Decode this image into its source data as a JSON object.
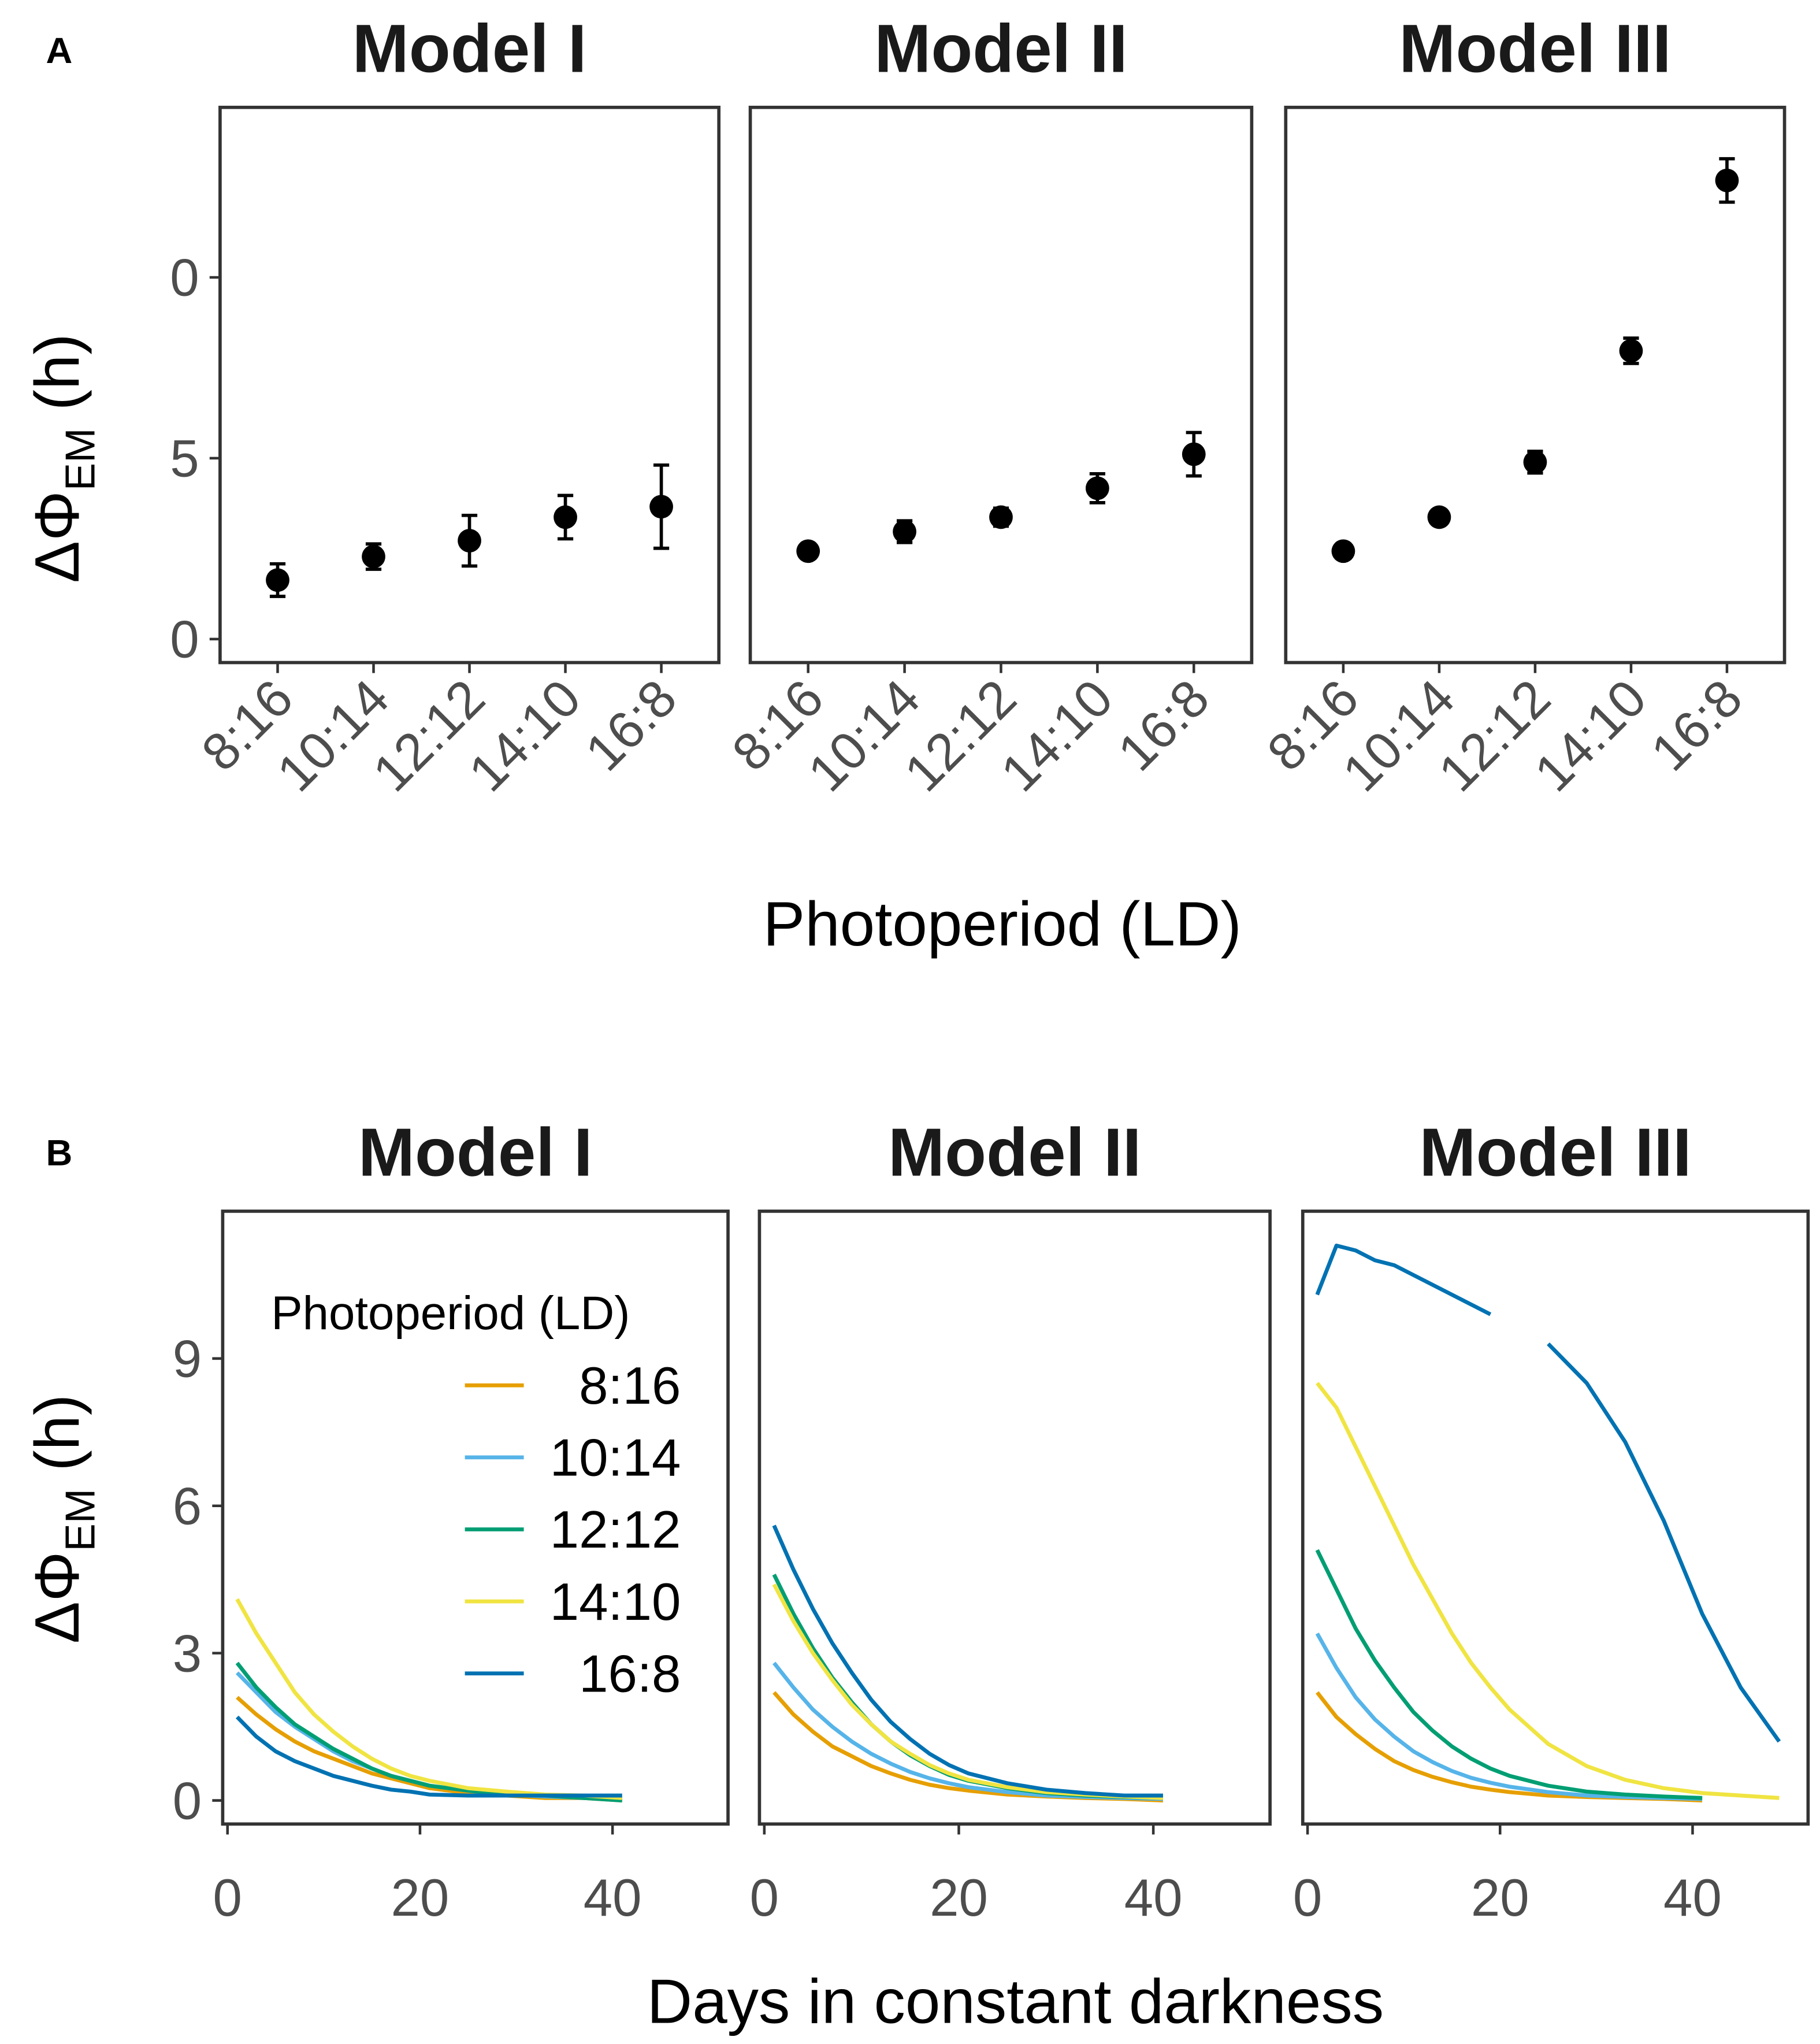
{
  "panels": [
    {
      "label": "A",
      "xlabel": "Photoperiod (LD)",
      "ylabel": {
        "main": "ΔΦ",
        "sub": "EM",
        "unit": " (h)"
      }
    },
    {
      "label": "B",
      "xlabel": "Days in constant darkness",
      "ylabel": {
        "main": "ΔΦ",
        "sub": "EM",
        "unit": " (h)"
      }
    }
  ],
  "chart_data": [
    {
      "type": "errorbar",
      "title": "Model I",
      "categories": [
        "8:16",
        "10:14",
        "12:12",
        "14:10",
        "16:8"
      ],
      "values": [
        1.63,
        2.28,
        2.72,
        3.37,
        3.66
      ],
      "errors": [
        0.45,
        0.35,
        0.7,
        0.6,
        1.15
      ],
      "color": "#000000",
      "ylim": [
        -0.65,
        14.7
      ],
      "yticks": [
        0,
        5,
        {
          "value": 10,
          "label": "0"
        }
      ]
    },
    {
      "type": "errorbar",
      "title": "Model II",
      "categories": [
        "8:16",
        "10:14",
        "12:12",
        "14:10",
        "16:8"
      ],
      "values": [
        2.43,
        2.97,
        3.37,
        4.17,
        5.11
      ],
      "errors": [
        0.2,
        0.3,
        0.25,
        0.4,
        0.6
      ],
      "color": "#000000",
      "ylim": [
        -0.65,
        14.7
      ]
    },
    {
      "type": "errorbar",
      "title": "Model III",
      "categories": [
        "8:16",
        "10:14",
        "12:12",
        "14:10",
        "16:8"
      ],
      "values": [
        2.43,
        3.37,
        4.89,
        7.97,
        12.68
      ],
      "errors": [
        0.2,
        0.2,
        0.3,
        0.35,
        0.6
      ],
      "color": "#000000",
      "ylim": [
        -0.65,
        14.7
      ]
    },
    {
      "type": "line",
      "title": "Model I",
      "legend_title": "Photoperiod (LD)",
      "xlim": [
        -0.5,
        52
      ],
      "xticks": [
        0,
        20,
        40
      ],
      "ylim": [
        -0.48,
        12
      ],
      "yticks": [
        0,
        3,
        6,
        9
      ],
      "x": [
        1,
        3,
        5,
        7,
        9,
        11,
        13,
        15,
        17,
        19,
        21,
        25,
        29,
        33,
        37,
        41
      ],
      "series": [
        {
          "name": "8:16",
          "color": "#e69f00",
          "values": [
            2.1,
            1.75,
            1.45,
            1.2,
            1.0,
            0.85,
            0.7,
            0.55,
            0.45,
            0.35,
            0.25,
            0.15,
            0.1,
            0.05,
            0.05,
            0.0
          ]
        },
        {
          "name": "10:14",
          "color": "#56b4e9",
          "values": [
            2.6,
            2.2,
            1.8,
            1.5,
            1.25,
            1.0,
            0.8,
            0.65,
            0.5,
            0.4,
            0.3,
            0.2,
            0.12,
            0.08,
            0.05,
            0.03
          ]
        },
        {
          "name": "12:12",
          "color": "#009e73",
          "values": [
            2.8,
            2.3,
            1.9,
            1.55,
            1.3,
            1.05,
            0.85,
            0.65,
            0.5,
            0.4,
            0.3,
            0.2,
            0.12,
            0.1,
            0.05,
            0.0
          ]
        },
        {
          "name": "14:10",
          "color": "#f0e442",
          "values": [
            4.1,
            3.4,
            2.8,
            2.2,
            1.75,
            1.4,
            1.1,
            0.85,
            0.65,
            0.5,
            0.4,
            0.25,
            0.18,
            0.12,
            0.1,
            0.05
          ]
        },
        {
          "name": "16:8",
          "color": "#0072b2",
          "values": [
            1.7,
            1.3,
            1.0,
            0.8,
            0.65,
            0.5,
            0.4,
            0.3,
            0.22,
            0.18,
            0.12,
            0.1,
            0.1,
            0.1,
            0.1,
            0.1
          ]
        }
      ]
    },
    {
      "type": "line",
      "title": "Model II",
      "xlim": [
        -0.5,
        52
      ],
      "xticks": [
        0,
        20,
        40
      ],
      "ylim": [
        -0.48,
        12
      ],
      "x": [
        1,
        3,
        5,
        7,
        9,
        11,
        13,
        15,
        17,
        19,
        21,
        25,
        29,
        33,
        37,
        41
      ],
      "series": [
        {
          "color": "#e69f00",
          "values": [
            2.2,
            1.75,
            1.4,
            1.1,
            0.9,
            0.7,
            0.55,
            0.42,
            0.32,
            0.25,
            0.2,
            0.12,
            0.08,
            0.05,
            0.03,
            0.0
          ]
        },
        {
          "color": "#56b4e9",
          "values": [
            2.8,
            2.3,
            1.85,
            1.5,
            1.2,
            0.95,
            0.75,
            0.58,
            0.45,
            0.35,
            0.27,
            0.17,
            0.1,
            0.07,
            0.05,
            0.03
          ]
        },
        {
          "color": "#009e73",
          "values": [
            4.6,
            3.8,
            3.1,
            2.5,
            2.0,
            1.55,
            1.2,
            0.92,
            0.7,
            0.52,
            0.4,
            0.25,
            0.15,
            0.1,
            0.07,
            0.05
          ]
        },
        {
          "color": "#f0e442",
          "values": [
            4.4,
            3.65,
            3.0,
            2.45,
            1.95,
            1.55,
            1.2,
            0.95,
            0.72,
            0.55,
            0.42,
            0.27,
            0.17,
            0.12,
            0.08,
            0.05
          ]
        },
        {
          "color": "#0072b2",
          "values": [
            5.6,
            4.7,
            3.9,
            3.2,
            2.6,
            2.05,
            1.6,
            1.25,
            0.95,
            0.72,
            0.55,
            0.35,
            0.22,
            0.15,
            0.1,
            0.1
          ]
        }
      ]
    },
    {
      "type": "line",
      "title": "Model III",
      "xlim": [
        -0.5,
        52
      ],
      "xticks": [
        0,
        20,
        40
      ],
      "ylim": [
        -0.48,
        12
      ],
      "x": [
        1,
        3,
        5,
        7,
        9,
        11,
        13,
        15,
        17,
        19,
        21,
        25,
        29,
        33,
        37,
        41,
        45,
        49
      ],
      "series": [
        {
          "color": "#e69f00",
          "values": [
            2.2,
            1.7,
            1.35,
            1.05,
            0.8,
            0.62,
            0.48,
            0.37,
            0.28,
            0.22,
            0.17,
            0.1,
            0.07,
            0.05,
            0.03,
            0.0,
            null,
            null
          ]
        },
        {
          "color": "#56b4e9",
          "values": [
            3.4,
            2.7,
            2.1,
            1.65,
            1.3,
            1.0,
            0.78,
            0.6,
            0.46,
            0.36,
            0.28,
            0.17,
            0.1,
            0.07,
            0.05,
            0.03,
            null,
            null
          ]
        },
        {
          "color": "#009e73",
          "values": [
            5.1,
            4.3,
            3.5,
            2.85,
            2.3,
            1.8,
            1.42,
            1.1,
            0.85,
            0.65,
            0.5,
            0.3,
            0.18,
            0.12,
            0.08,
            0.05,
            null,
            null
          ]
        },
        {
          "color": "#f0e442",
          "values": [
            8.5,
            8.0,
            7.2,
            6.4,
            5.6,
            4.8,
            4.1,
            3.4,
            2.8,
            2.3,
            1.85,
            1.15,
            0.7,
            0.42,
            0.25,
            0.15,
            0.1,
            0.05
          ]
        },
        {
          "color": "#0072b2",
          "values": [
            10.3,
            11.3,
            11.2,
            11.0,
            10.9,
            10.7,
            10.5,
            10.3,
            10.1,
            9.9,
            null,
            9.3,
            8.5,
            7.3,
            5.7,
            3.8,
            2.3,
            1.2
          ]
        }
      ]
    }
  ]
}
